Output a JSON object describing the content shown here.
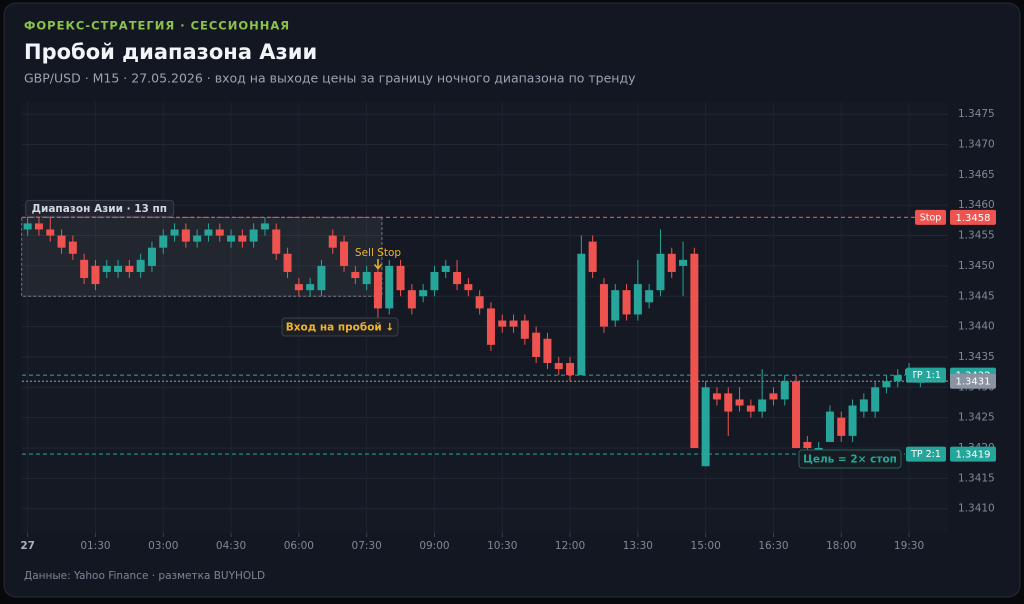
{
  "chart_data": {
    "type": "candlestick",
    "kicker": "ФОРЕКС-СТРАТЕГИЯ · СЕССИОННАЯ",
    "title": "Пробой диапазона Азии",
    "subtitle": "GBP/USD · M15 · 27.05.2026 · вход на выходе цены за границу ночного диапазона по тренду",
    "footer": "Данные: Yahoo Finance · разметка BUYHOLD",
    "categories": [
      "27",
      null,
      null,
      null,
      null,
      null,
      "01:30",
      null,
      null,
      null,
      null,
      null,
      "03:00",
      null,
      null,
      null,
      null,
      null,
      "04:30",
      null,
      null,
      null,
      null,
      null,
      "06:00",
      null,
      null,
      null,
      null,
      null,
      "07:30",
      null,
      null,
      null,
      null,
      null,
      "09:00",
      null,
      null,
      null,
      null,
      null,
      "10:30",
      null,
      null,
      null,
      null,
      null,
      "12:00",
      null,
      null,
      null,
      null,
      null,
      "13:30",
      null,
      null,
      null,
      null,
      null,
      "15:00",
      null,
      null,
      null,
      null,
      null,
      "16:30",
      null,
      null,
      null,
      null,
      null,
      "18:00",
      null,
      null,
      null,
      null,
      null,
      "19:30",
      null
    ],
    "open": [
      1.3456,
      1.3457,
      1.3456,
      1.3455,
      1.3454,
      1.3451,
      1.345,
      1.3449,
      1.3449,
      1.345,
      1.3449,
      1.345,
      1.3453,
      1.3455,
      1.3456,
      1.3454,
      1.3455,
      1.3456,
      1.3454,
      1.3455,
      1.3454,
      1.3456,
      1.3456,
      1.3452,
      1.3447,
      1.3446,
      1.3446,
      1.3455,
      1.3454,
      1.3449,
      1.3447,
      1.3449,
      1.3443,
      1.345,
      1.3446,
      1.3445,
      1.3446,
      1.3449,
      1.3449,
      1.3447,
      1.3445,
      1.3443,
      1.3441,
      1.3441,
      1.3441,
      1.3439,
      1.3438,
      1.3434,
      1.3434,
      1.3432,
      1.3454,
      1.3447,
      1.3441,
      1.3446,
      1.3442,
      1.3444,
      1.3446,
      1.3452,
      1.345,
      1.3452,
      1.3417,
      1.3429,
      1.3429,
      1.3428,
      1.3427,
      1.3426,
      1.3429,
      1.3428,
      1.3431,
      1.3421,
      1.3419,
      1.3421,
      1.3425,
      1.3422,
      1.3426,
      1.3426,
      1.343,
      1.3431,
      1.3432,
      1.3431
    ],
    "high": [
      1.3458,
      1.3458,
      1.3458,
      1.3456,
      1.3455,
      1.3452,
      1.3451,
      1.3451,
      1.3451,
      1.3451,
      1.3452,
      1.3454,
      1.3456,
      1.3457,
      1.3457,
      1.3456,
      1.3457,
      1.3457,
      1.3456,
      1.3456,
      1.3457,
      1.3458,
      1.3457,
      1.3453,
      1.3448,
      1.3448,
      1.3451,
      1.3456,
      1.3455,
      1.345,
      1.345,
      1.345,
      1.3451,
      1.3451,
      1.3447,
      1.3447,
      1.345,
      1.3451,
      1.3451,
      1.3448,
      1.3446,
      1.3444,
      1.3442,
      1.3442,
      1.3442,
      1.344,
      1.3439,
      1.3435,
      1.3435,
      1.3455,
      1.3455,
      1.3448,
      1.3447,
      1.3447,
      1.3451,
      1.3447,
      1.3456,
      1.3453,
      1.3454,
      1.3453,
      1.3431,
      1.343,
      1.343,
      1.343,
      1.3428,
      1.3433,
      1.343,
      1.3432,
      1.3432,
      1.3422,
      1.3421,
      1.3427,
      1.3426,
      1.3428,
      1.3429,
      1.3431,
      1.3432,
      1.3433,
      1.3434,
      1.3432
    ],
    "low": [
      1.3455,
      1.3455,
      1.3454,
      1.3452,
      1.3451,
      1.3447,
      1.3446,
      1.3448,
      1.3448,
      1.3448,
      1.3448,
      1.3449,
      1.3452,
      1.3454,
      1.3453,
      1.3453,
      1.3454,
      1.3454,
      1.3453,
      1.3453,
      1.3453,
      1.3455,
      1.3451,
      1.3448,
      1.3445,
      1.3445,
      1.3445,
      1.3452,
      1.3449,
      1.3447,
      1.3446,
      1.3441,
      1.3442,
      1.3445,
      1.3442,
      1.3444,
      1.3445,
      1.3448,
      1.3446,
      1.3445,
      1.3442,
      1.3436,
      1.3439,
      1.3439,
      1.3437,
      1.3434,
      1.3433,
      1.3432,
      1.3431,
      1.3432,
      1.3448,
      1.3439,
      1.344,
      1.3441,
      1.3441,
      1.3443,
      1.3445,
      1.3448,
      1.3445,
      1.342,
      1.3417,
      1.3427,
      1.3422,
      1.3426,
      1.3425,
      1.3425,
      1.3427,
      1.3427,
      1.342,
      1.3419,
      1.3419,
      1.3421,
      1.3421,
      1.3421,
      1.3425,
      1.3425,
      1.3429,
      1.343,
      1.3431,
      1.343
    ],
    "close": [
      1.3457,
      1.3456,
      1.3455,
      1.3453,
      1.3452,
      1.3448,
      1.3447,
      1.345,
      1.345,
      1.3449,
      1.3451,
      1.3453,
      1.3455,
      1.3456,
      1.3454,
      1.3455,
      1.3456,
      1.3455,
      1.3455,
      1.3454,
      1.3456,
      1.3457,
      1.3452,
      1.3449,
      1.3446,
      1.3447,
      1.345,
      1.3453,
      1.345,
      1.3448,
      1.3449,
      1.3443,
      1.345,
      1.3446,
      1.3443,
      1.3446,
      1.3449,
      1.345,
      1.3447,
      1.3446,
      1.3443,
      1.3437,
      1.344,
      1.344,
      1.3438,
      1.3435,
      1.3434,
      1.3433,
      1.3432,
      1.3452,
      1.3449,
      1.344,
      1.3446,
      1.3442,
      1.3447,
      1.3446,
      1.3452,
      1.3449,
      1.3451,
      1.342,
      1.343,
      1.3428,
      1.3426,
      1.3427,
      1.3426,
      1.3428,
      1.3428,
      1.3431,
      1.342,
      1.342,
      1.342,
      1.3426,
      1.3422,
      1.3427,
      1.3428,
      1.343,
      1.3431,
      1.3432,
      1.3433,
      1.3431
    ],
    "up_color": "#26a69a",
    "down_color": "#ef5350",
    "ylim": [
      1.3406,
      1.3477
    ],
    "yticks": [
      {
        "value": 1.341,
        "label": "1.3410"
      },
      1.3415,
      {
        "value": 1.342,
        "label": "1.3420"
      },
      1.3425,
      {
        "value": 1.343,
        "label": "1.3430"
      },
      1.3435,
      {
        "value": 1.344,
        "label": "1.3440"
      },
      1.3445,
      {
        "value": 1.345,
        "label": "1.3450"
      },
      1.3455,
      {
        "value": 1.346,
        "label": "1.3460"
      },
      1.3465,
      {
        "value": 1.347,
        "label": "1.3470"
      },
      1.3475
    ],
    "grid": true,
    "asia_range": {
      "label": "Диапазон Азии · 13 пп",
      "high": 1.3458,
      "low": 1.3445
    },
    "levels": [
      {
        "label": "Stop",
        "value": 1.3458,
        "color": "#ef5350"
      },
      {
        "label": "TP 1:1",
        "value": 1.3432,
        "color": "#26a69a"
      },
      {
        "value": 1.3431,
        "color": "#8a93a3"
      },
      {
        "label": "TP 2:1",
        "value": 1.3419,
        "color": "#26a69a"
      }
    ],
    "sell_stop_label": "Sell Stop",
    "entry_label": "Вход на пробой ↓",
    "target_label": "Цель = 2× стоп"
  }
}
